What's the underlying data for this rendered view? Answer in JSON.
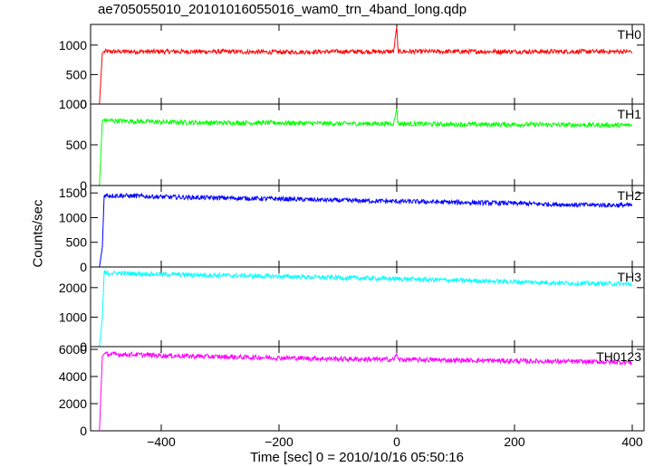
{
  "title": "ae705055010_20101016055016_wam0_trn_4band_long.qdp",
  "ylabel": "Counts/sec",
  "xlabel": "Time [sec] 0 = 2010/10/16 05:50:16",
  "chart_data": {
    "type": "line",
    "xlim": [
      -520,
      420
    ],
    "xticks": [
      -400,
      -200,
      0,
      200,
      400
    ],
    "xtick_labels": [
      "−400",
      "−200",
      "0",
      "200",
      "400"
    ],
    "grid": false,
    "panels": [
      {
        "name": "TH0",
        "color": "#ff0000",
        "ylim": [
          0,
          1350
        ],
        "yticks": [
          0,
          500,
          1000
        ],
        "ytick_labels": [
          "0",
          "500",
          "1000"
        ],
        "x": [
          -505,
          -500,
          -497,
          -450,
          -400,
          -300,
          -200,
          -100,
          -5,
          0,
          2,
          100,
          200,
          300,
          400
        ],
        "y": [
          0,
          870,
          890,
          890,
          890,
          890,
          880,
          890,
          890,
          1330,
          890,
          890,
          890,
          890,
          890
        ]
      },
      {
        "name": "TH1",
        "color": "#00ff00",
        "ylim": [
          0,
          1000
        ],
        "yticks": [
          0,
          500,
          1000
        ],
        "ytick_labels": [
          "0",
          "500",
          "1000"
        ],
        "x": [
          -505,
          -500,
          -497,
          -450,
          -400,
          -300,
          -200,
          -100,
          -5,
          0,
          2,
          100,
          200,
          300,
          400
        ],
        "y": [
          0,
          800,
          800,
          790,
          780,
          770,
          770,
          760,
          760,
          950,
          760,
          750,
          750,
          745,
          740
        ]
      },
      {
        "name": "TH2",
        "color": "#0000ff",
        "ylim": [
          0,
          1650
        ],
        "yticks": [
          0,
          500,
          1000,
          1500
        ],
        "ytick_labels": [
          "0",
          "500",
          "1000",
          "1500"
        ],
        "x": [
          -505,
          -500,
          -497,
          -450,
          -400,
          -300,
          -200,
          -100,
          0,
          100,
          200,
          300,
          400
        ],
        "y": [
          0,
          400,
          1450,
          1440,
          1420,
          1400,
          1380,
          1350,
          1330,
          1310,
          1290,
          1260,
          1250
        ]
      },
      {
        "name": "TH3",
        "color": "#00ffff",
        "ylim": [
          0,
          2700
        ],
        "yticks": [
          0,
          1000,
          2000
        ],
        "ytick_labels": [
          "0",
          "1000",
          "2000"
        ],
        "x": [
          -505,
          -500,
          -497,
          -450,
          -400,
          -300,
          -200,
          -100,
          0,
          100,
          200,
          300,
          400
        ],
        "y": [
          0,
          1000,
          2500,
          2480,
          2450,
          2420,
          2380,
          2340,
          2300,
          2250,
          2200,
          2150,
          2120
        ]
      },
      {
        "name": "TH0123",
        "color": "#ff00ff",
        "ylim": [
          0,
          6200
        ],
        "yticks": [
          0,
          2000,
          4000,
          6000
        ],
        "ytick_labels": [
          "0",
          "2000",
          "4000",
          "6000"
        ],
        "x": [
          -505,
          -500,
          -497,
          -450,
          -400,
          -300,
          -200,
          -100,
          -5,
          0,
          2,
          100,
          200,
          300,
          400
        ],
        "y": [
          0,
          5500,
          5650,
          5620,
          5550,
          5450,
          5380,
          5300,
          5250,
          5700,
          5250,
          5200,
          5150,
          5100,
          5050
        ]
      }
    ]
  }
}
